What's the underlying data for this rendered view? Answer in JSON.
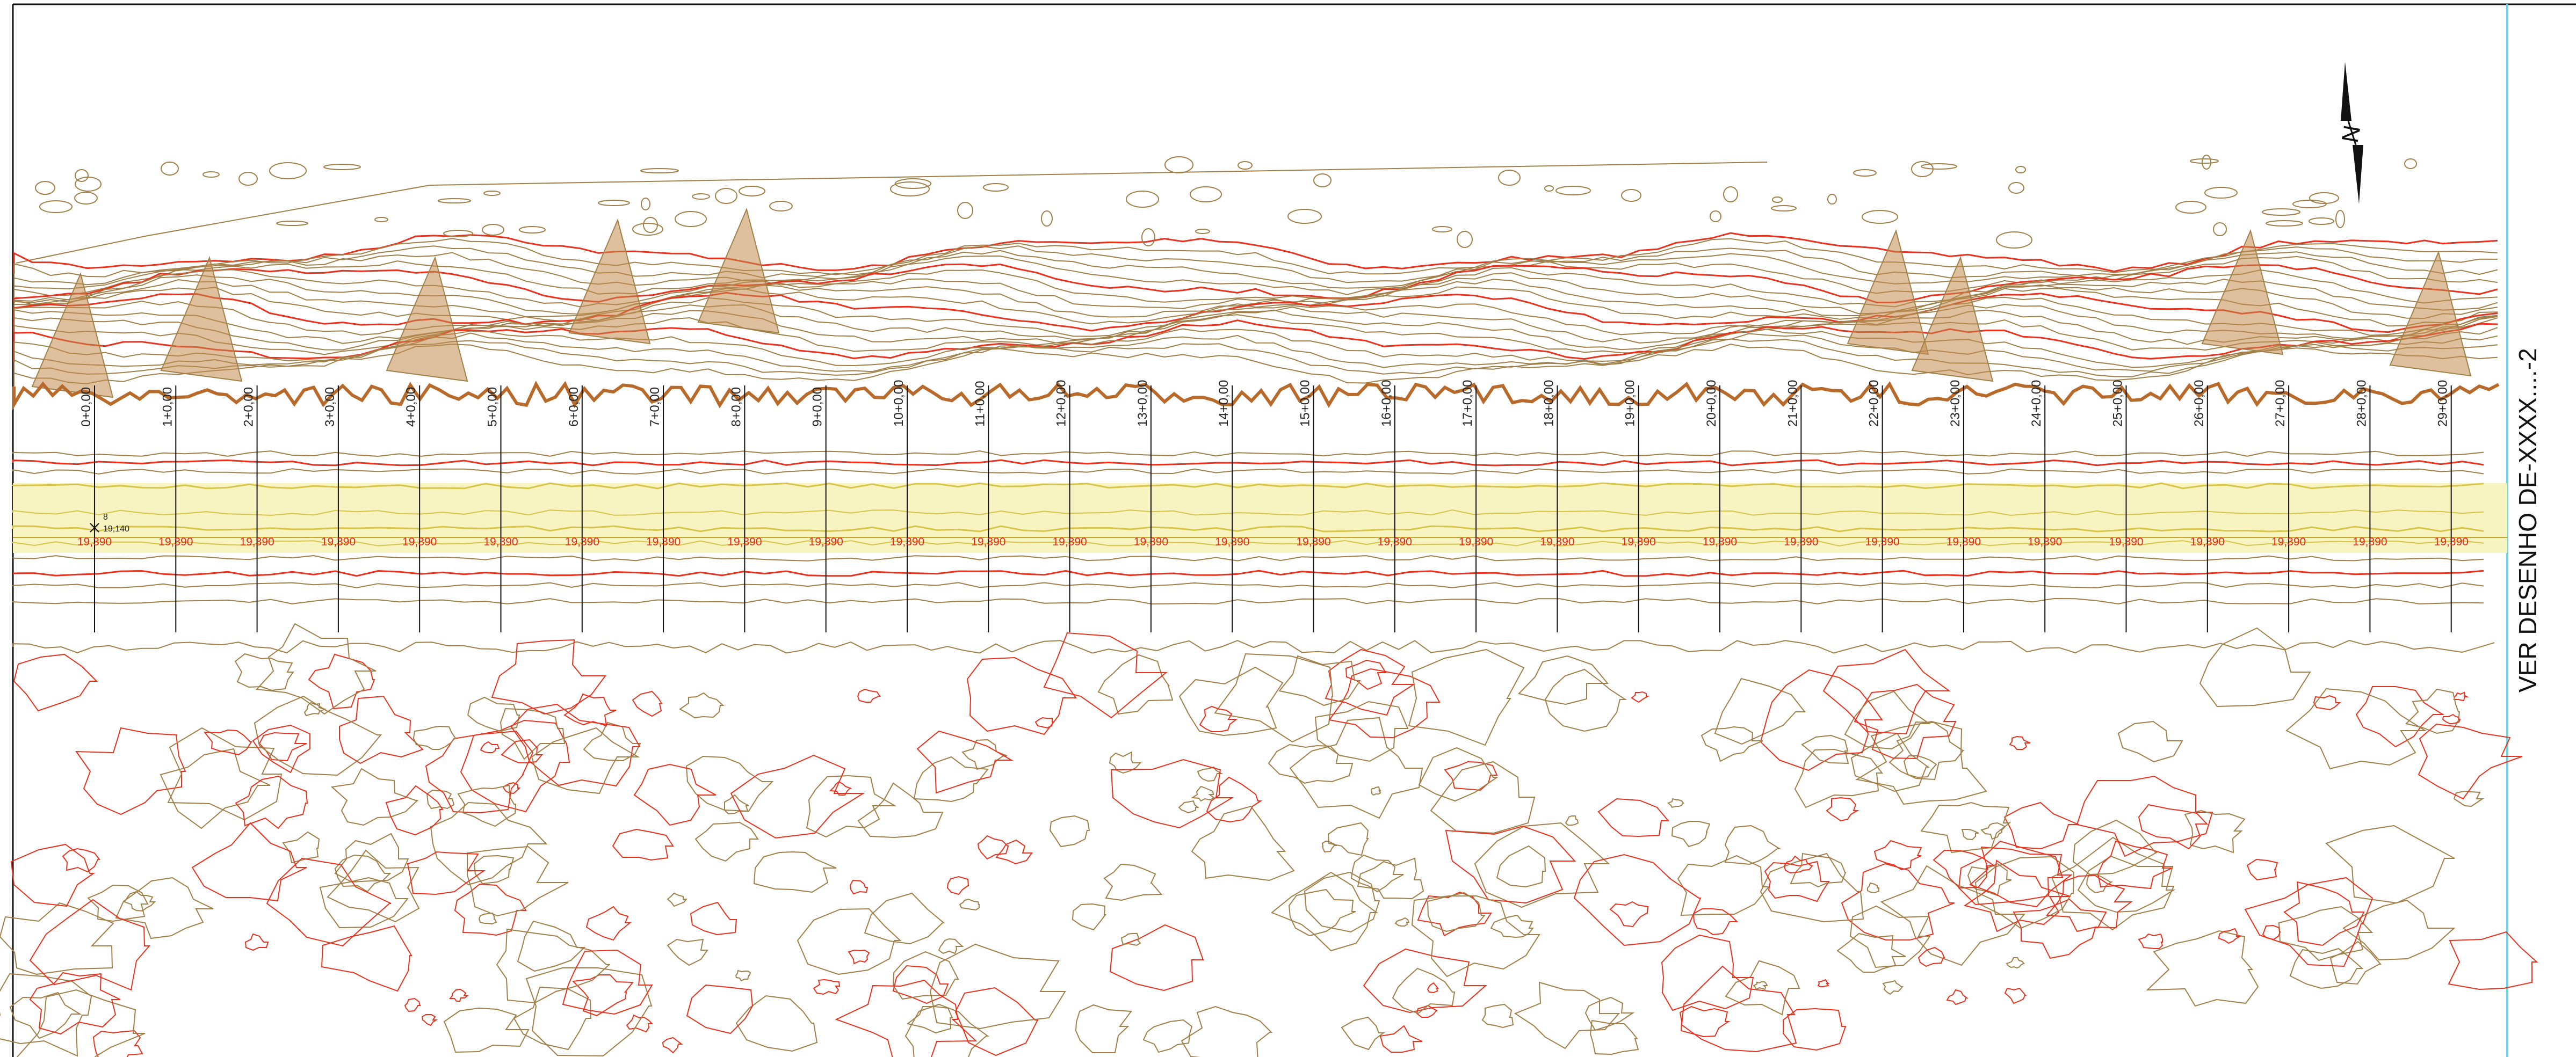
{
  "drawing": {
    "colors": {
      "contour_minor": "#a08048",
      "contour_major": "#e8321e",
      "road_band": "#f7f4c2",
      "road_edge": "#d8c44a",
      "station_tick": "#111111",
      "frame": "#111111",
      "cut_line": "#6fd3e6",
      "mass_fill": "#c28a4e"
    },
    "north_arrow": {
      "letter": "N",
      "icon": "north-arrow-icon"
    },
    "sheet_reference": "VER DESENHO DE-XXXX....-2",
    "survey_point": {
      "id": "8",
      "elevation": "19,140"
    },
    "stations": [
      "0+0,00",
      "1+0,00",
      "2+0,00",
      "3+0,00",
      "4+0,00",
      "5+0,00",
      "6+0,00",
      "7+0,00",
      "8+0,00",
      "9+0,00",
      "10+0,00",
      "11+0,00",
      "12+0,00",
      "13+0,00",
      "14+0,00",
      "15+0,00",
      "16+0,00",
      "17+0,00",
      "18+0,00",
      "19+0,00",
      "20+0,00",
      "21+0,00",
      "22+0,00",
      "23+0,00",
      "24+0,00",
      "25+0,00",
      "26+0,00",
      "27+0,00",
      "28+0,00",
      "29+0,00"
    ],
    "elevations": [
      "19,390",
      "19,390",
      "19,390",
      "19,390",
      "19,390",
      "19,390",
      "19,390",
      "19,390",
      "19,390",
      "19,390",
      "19,390",
      "19,390",
      "19,390",
      "19,390",
      "19,390",
      "19,390",
      "19,390",
      "19,390",
      "19,390",
      "19,390",
      "19,390",
      "19,390",
      "19,390",
      "19,390",
      "19,390",
      "19,390",
      "19,390",
      "19,390",
      "19,390",
      "19,390"
    ]
  }
}
